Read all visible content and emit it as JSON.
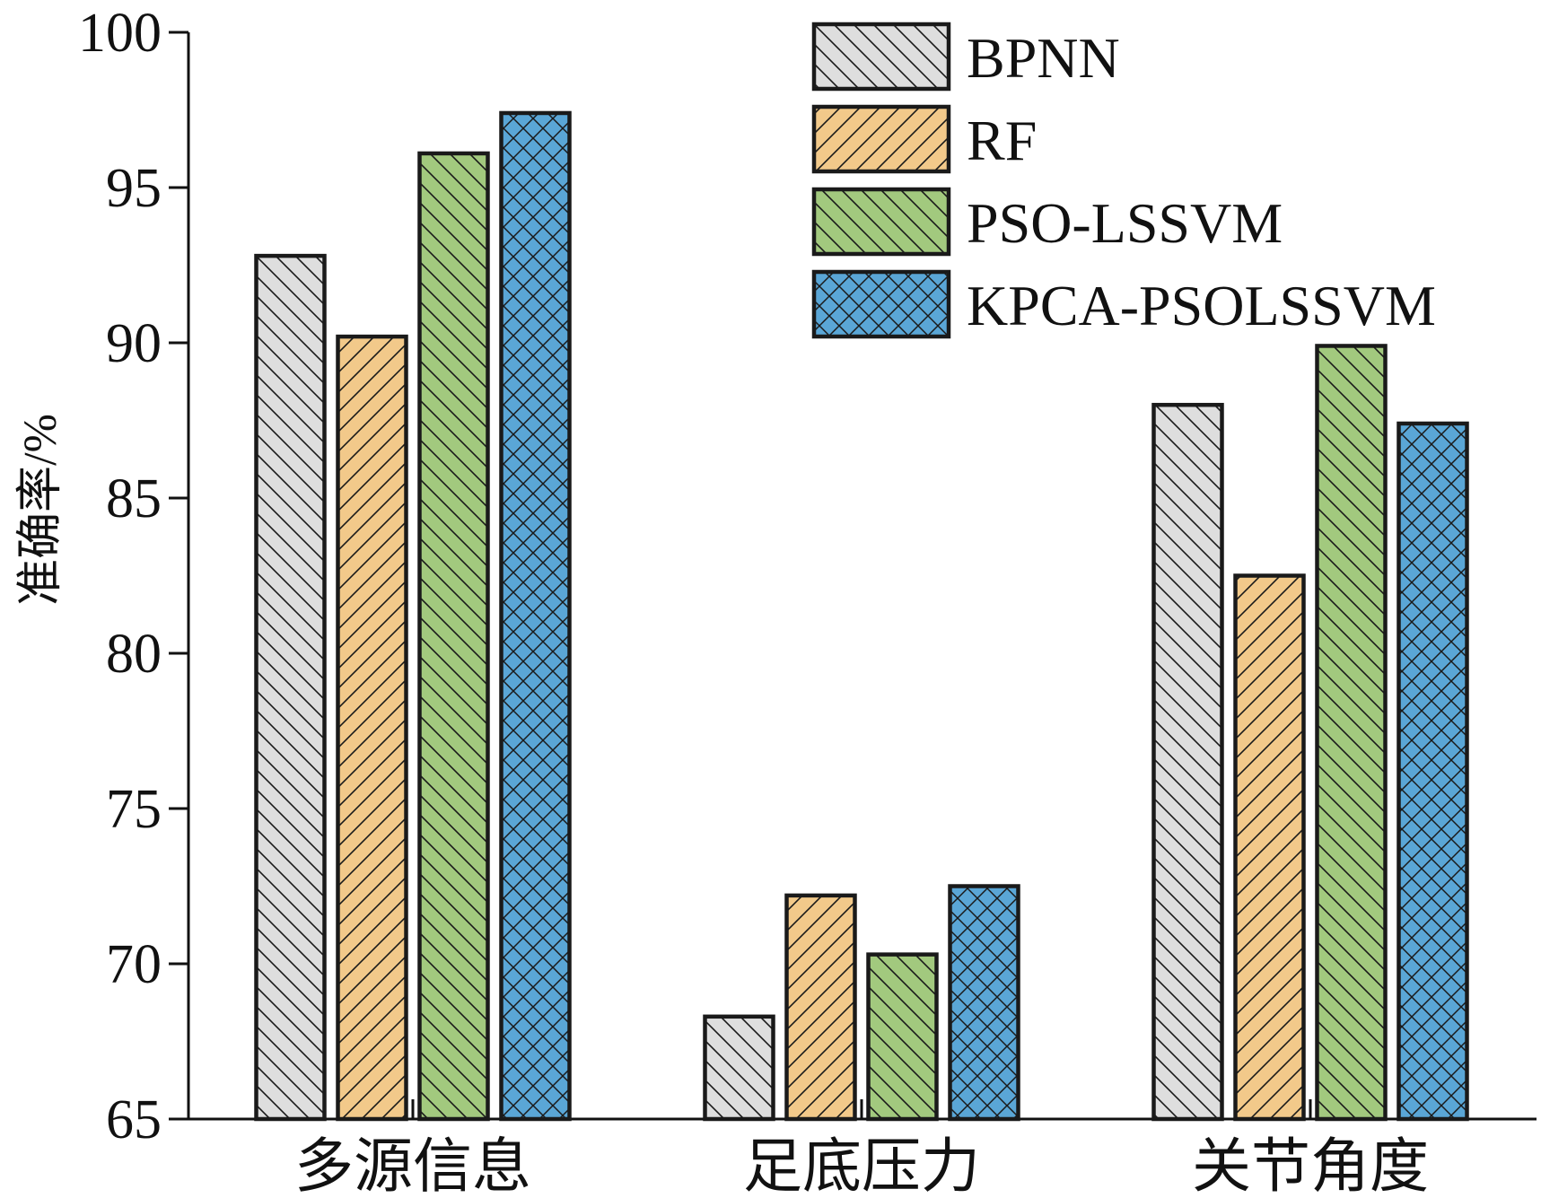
{
  "chart_data": {
    "type": "bar",
    "categories": [
      "多源信息",
      "足底压力",
      "关节角度"
    ],
    "ylabel": "准确率/%",
    "xlabel": "",
    "title": "",
    "ylim": [
      65,
      100
    ],
    "yticks": [
      65,
      70,
      75,
      80,
      85,
      90,
      95,
      100
    ],
    "legend_position": "top-right",
    "grid": false,
    "series": [
      {
        "name": "BPNN",
        "values": [
          92.8,
          68.3,
          88.0
        ],
        "color": "#dedede",
        "pattern": "backslash"
      },
      {
        "name": "RF",
        "values": [
          90.2,
          72.2,
          82.5
        ],
        "color": "#f2c98a",
        "pattern": "slash"
      },
      {
        "name": "PSO-LSSVM",
        "values": [
          96.1,
          70.3,
          89.9
        ],
        "color": "#a2c97e",
        "pattern": "backslash"
      },
      {
        "name": "KPCA-PSOLSSVM",
        "values": [
          97.4,
          72.5,
          87.4
        ],
        "color": "#5aa6d6",
        "pattern": "cross"
      }
    ]
  }
}
